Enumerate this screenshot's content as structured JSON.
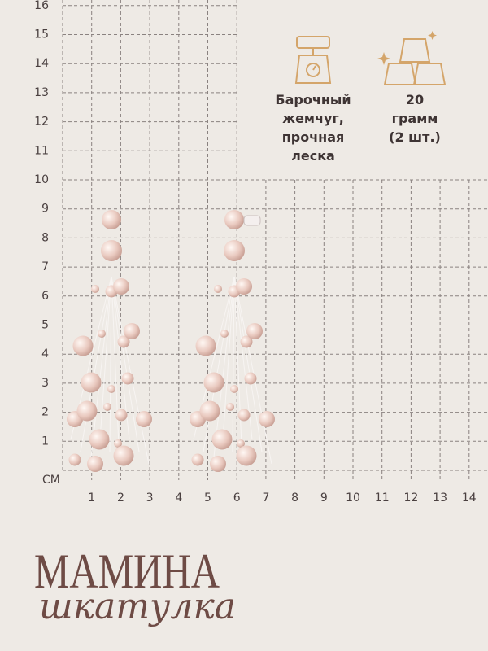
{
  "ruler": {
    "unit": "СМ",
    "y_labels": [
      1,
      2,
      3,
      4,
      5,
      6,
      7,
      8,
      9,
      10,
      11,
      12,
      13,
      14,
      15,
      16
    ],
    "x_labels": [
      1,
      2,
      3,
      4,
      5,
      6,
      7,
      8,
      9,
      10,
      11,
      12,
      13,
      14
    ]
  },
  "features": [
    {
      "lines": [
        "Барочный",
        "жемчуг,",
        "прочная",
        "леска"
      ]
    },
    {
      "lines": [
        "20",
        "грамм",
        "(2 шт.)"
      ]
    }
  ],
  "brand": {
    "title": "МАМИНА",
    "subtitle": "шкатулка"
  }
}
